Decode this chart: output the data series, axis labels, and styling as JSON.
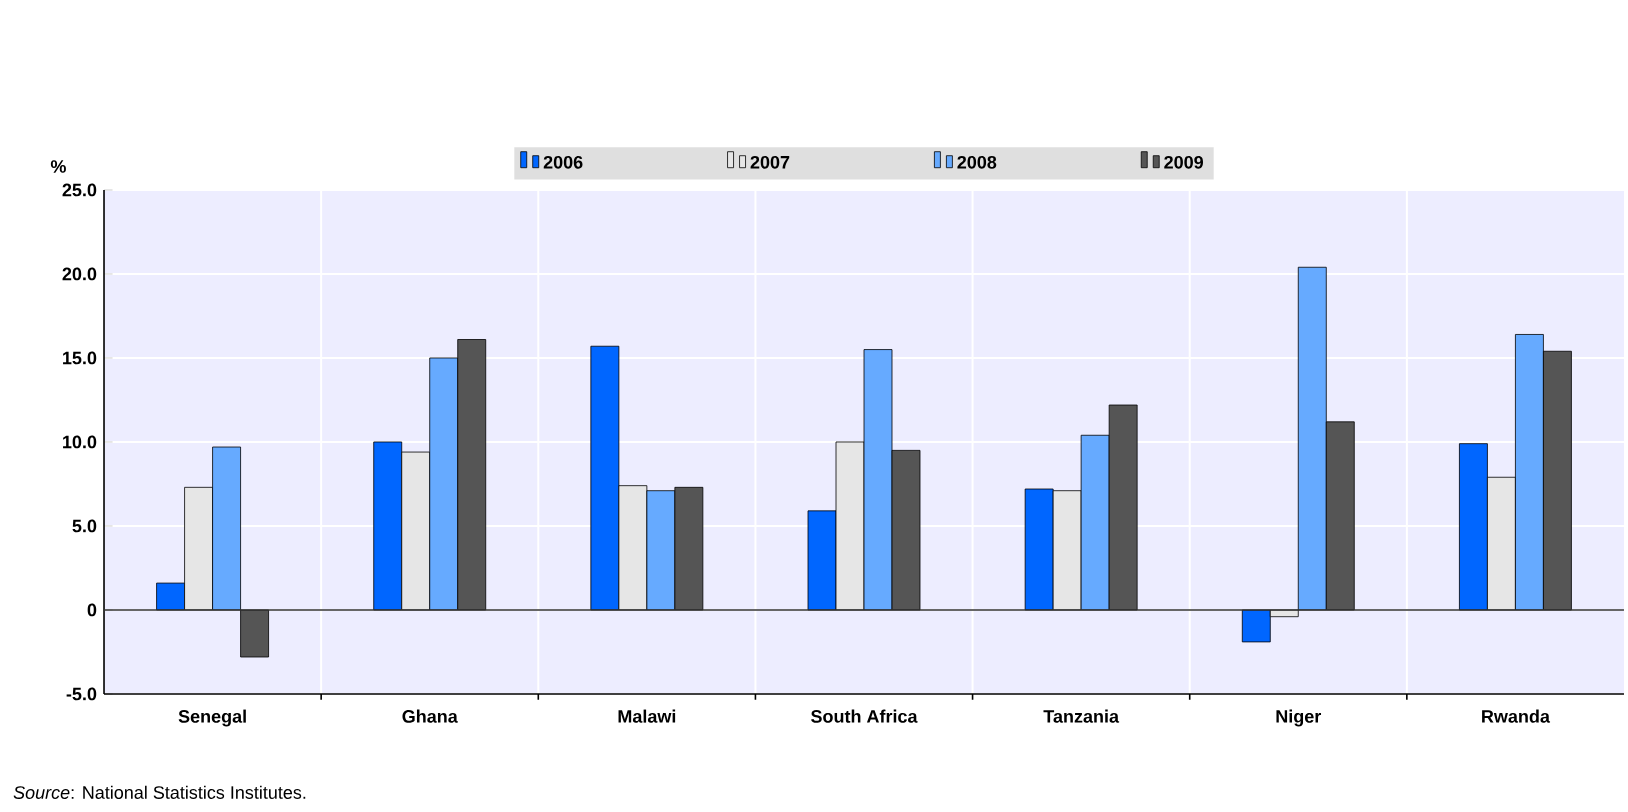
{
  "chart_data": {
    "type": "bar",
    "ylabel": "%",
    "categories": [
      "Senegal",
      "Ghana",
      "Malawi",
      "South Africa",
      "Tanzania",
      "Niger",
      "Rwanda"
    ],
    "series": [
      {
        "name": "2006",
        "color": "#0066ff",
        "values": [
          1.6,
          10.0,
          15.7,
          5.9,
          7.2,
          -1.9,
          9.9
        ]
      },
      {
        "name": "2007",
        "color": "#e6e6e6",
        "values": [
          7.3,
          9.4,
          7.4,
          10.0,
          7.1,
          -0.4,
          7.9
        ]
      },
      {
        "name": "2008",
        "color": "#66aaff",
        "values": [
          9.7,
          15.0,
          7.1,
          15.5,
          10.4,
          20.4,
          16.4
        ]
      },
      {
        "name": "2009",
        "color": "#555555",
        "values": [
          -2.8,
          16.1,
          7.3,
          9.5,
          12.2,
          11.2,
          15.4
        ]
      }
    ],
    "ylim": [
      -5,
      25
    ],
    "yticks": [
      {
        "value": -5,
        "label": "-5.0"
      },
      {
        "value": 0,
        "label": "0"
      },
      {
        "value": 5,
        "label": "5.0"
      },
      {
        "value": 10,
        "label": "10.0"
      },
      {
        "value": 15,
        "label": "15.0"
      },
      {
        "value": 20,
        "label": "20.0"
      },
      {
        "value": 25,
        "label": "25.0"
      }
    ],
    "ref_lines": [
      {
        "axis": "y",
        "value": 0,
        "color": "#333333"
      }
    ],
    "grid": true,
    "legend": "top",
    "annotations": [
      "*Source*: National Statistics Institutes."
    ]
  }
}
